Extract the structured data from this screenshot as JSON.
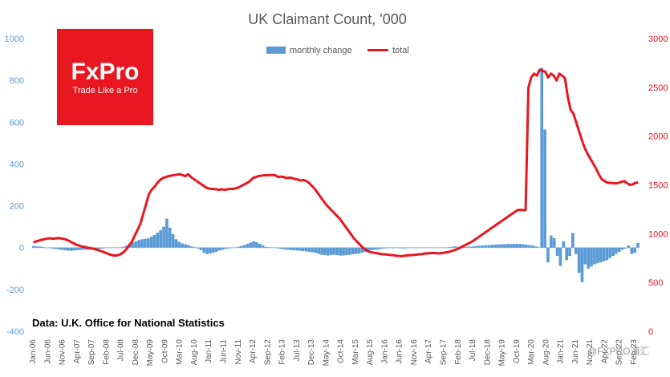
{
  "chart_data": {
    "type": "bar+line",
    "title": "UK Claimant Count, '000",
    "source_note": "Data: U.K. Office for National Statistics",
    "legend_position": "top-center",
    "y_left": {
      "min": -400,
      "max": 1000,
      "ticks": [
        "1000",
        "800",
        "600",
        "400",
        "200",
        "0",
        "-200",
        "-400"
      ]
    },
    "y_right": {
      "min": 0,
      "max": 3000,
      "ticks": [
        "3000",
        "2500",
        "2000",
        "1500",
        "1000",
        "500",
        "0"
      ]
    },
    "x_labels": [
      "Jan-06",
      "Jun-06",
      "Nov-06",
      "Apr-07",
      "Sep-07",
      "Feb-08",
      "Jul-08",
      "Dec-08",
      "May-09",
      "Oct-09",
      "Mar-10",
      "Aug-10",
      "Jan-11",
      "Jun-11",
      "Nov-11",
      "Apr-12",
      "Sep-12",
      "Feb-13",
      "Jul-13",
      "Dec-13",
      "May-14",
      "Oct-14",
      "Mar-15",
      "Aug-15",
      "Jan-16",
      "Jun-16",
      "Nov-16",
      "Apr-17",
      "Sep-17",
      "Feb-18",
      "Jul-18",
      "Dec-18",
      "May-19",
      "Oct-19",
      "Mar-20",
      "Aug-20",
      "Jan-21",
      "Jun-21",
      "Nov-21",
      "Apr-22",
      "Sep-22",
      "Feb-23"
    ],
    "series": [
      {
        "name": "monthly change",
        "axis": "left",
        "kind": "bar",
        "color": "#5b9bd5",
        "values": [
          8,
          6,
          5,
          3,
          0,
          -2,
          -4,
          -6,
          -8,
          -10,
          -12,
          -14,
          -15,
          -14,
          -12,
          -11,
          -10,
          -10,
          -9,
          -8,
          -7,
          -6,
          -4,
          -3,
          -2,
          -2,
          -1,
          0,
          2,
          4,
          10,
          16,
          24,
          30,
          36,
          40,
          42,
          44,
          52,
          60,
          72,
          84,
          100,
          138,
          95,
          65,
          40,
          28,
          20,
          16,
          12,
          6,
          2,
          -4,
          -12,
          -25,
          -30,
          -28,
          -24,
          -20,
          -14,
          -10,
          -6,
          -4,
          -2,
          0,
          4,
          8,
          12,
          18,
          24,
          30,
          26,
          18,
          10,
          4,
          2,
          0,
          -2,
          -4,
          -6,
          -8,
          -10,
          -12,
          -12,
          -14,
          -15,
          -16,
          -18,
          -20,
          -22,
          -25,
          -30,
          -34,
          -36,
          -38,
          -36,
          -34,
          -36,
          -38,
          -38,
          -36,
          -34,
          -32,
          -30,
          -28,
          -24,
          -20,
          -16,
          -12,
          -10,
          -8,
          -6,
          -4,
          -3,
          -2,
          -3,
          -2,
          -3,
          -4,
          -3,
          -2,
          -2,
          -3,
          -2,
          -1,
          -2,
          -1,
          0,
          -1,
          -2,
          -1,
          -2,
          0,
          2,
          4,
          6,
          4,
          2,
          3,
          4,
          5,
          6,
          8,
          9,
          10,
          11,
          12,
          14,
          14,
          15,
          16,
          16,
          17,
          17,
          18,
          18,
          18,
          16,
          14,
          12,
          10,
          6,
          2,
          860,
          565,
          -70,
          58,
          45,
          -40,
          -88,
          30,
          -60,
          -40,
          70,
          -30,
          -120,
          -165,
          -80,
          -100,
          -90,
          -80,
          -75,
          -70,
          -65,
          -60,
          -50,
          -40,
          -30,
          -20,
          -10,
          -5,
          10,
          -30,
          -25,
          22
        ]
      },
      {
        "name": "total",
        "axis": "right",
        "kind": "line",
        "color": "#e8161e",
        "values": [
          910,
          922,
          930,
          938,
          945,
          950,
          952,
          948,
          952,
          955,
          950,
          945,
          935,
          920,
          905,
          890,
          880,
          870,
          865,
          858,
          852,
          848,
          840,
          832,
          822,
          812,
          800,
          788,
          780,
          775,
          780,
          790,
          810,
          840,
          880,
          920,
          980,
          1040,
          1100,
          1200,
          1300,
          1400,
          1450,
          1480,
          1520,
          1550,
          1570,
          1580,
          1590,
          1595,
          1600,
          1605,
          1610,
          1600,
          1590,
          1610,
          1580,
          1560,
          1540,
          1520,
          1500,
          1480,
          1465,
          1460,
          1458,
          1455,
          1450,
          1455,
          1450,
          1455,
          1460,
          1458,
          1465,
          1475,
          1490,
          1505,
          1520,
          1540,
          1570,
          1580,
          1590,
          1595,
          1598,
          1600,
          1600,
          1602,
          1598,
          1580,
          1585,
          1580,
          1570,
          1575,
          1570,
          1560,
          1555,
          1545,
          1550,
          1540,
          1520,
          1490,
          1460,
          1420,
          1380,
          1340,
          1300,
          1270,
          1240,
          1210,
          1180,
          1150,
          1110,
          1070,
          1030,
          990,
          950,
          920,
          890,
          860,
          840,
          820,
          810,
          805,
          800,
          795,
          790,
          788,
          785,
          782,
          780,
          775,
          772,
          770,
          775,
          778,
          780,
          782,
          785,
          788,
          790,
          795,
          798,
          800,
          802,
          800,
          798,
          800,
          805,
          810,
          815,
          825,
          835,
          845,
          860,
          875,
          890,
          905,
          920,
          940,
          960,
          980,
          1000,
          1020,
          1040,
          1060,
          1080,
          1100,
          1120,
          1140,
          1160,
          1180,
          1200,
          1220,
          1240,
          1245,
          1240,
          1243,
          2500,
          2600,
          2640,
          2620,
          2680,
          2670,
          2660,
          2600,
          2640,
          2620,
          2570,
          2640,
          2620,
          2590,
          2400,
          2270,
          2230,
          2140,
          2050,
          1960,
          1880,
          1820,
          1770,
          1720,
          1670,
          1610,
          1560,
          1540,
          1525,
          1520,
          1520,
          1515,
          1520,
          1530,
          1540,
          1520,
          1500,
          1505,
          1520,
          1525
        ]
      }
    ]
  },
  "logo": {
    "brand": "FxPro",
    "tagline": "Trade Like a Pro",
    "color": "#e8161e"
  },
  "watermark": "@FXPRO浦汇"
}
